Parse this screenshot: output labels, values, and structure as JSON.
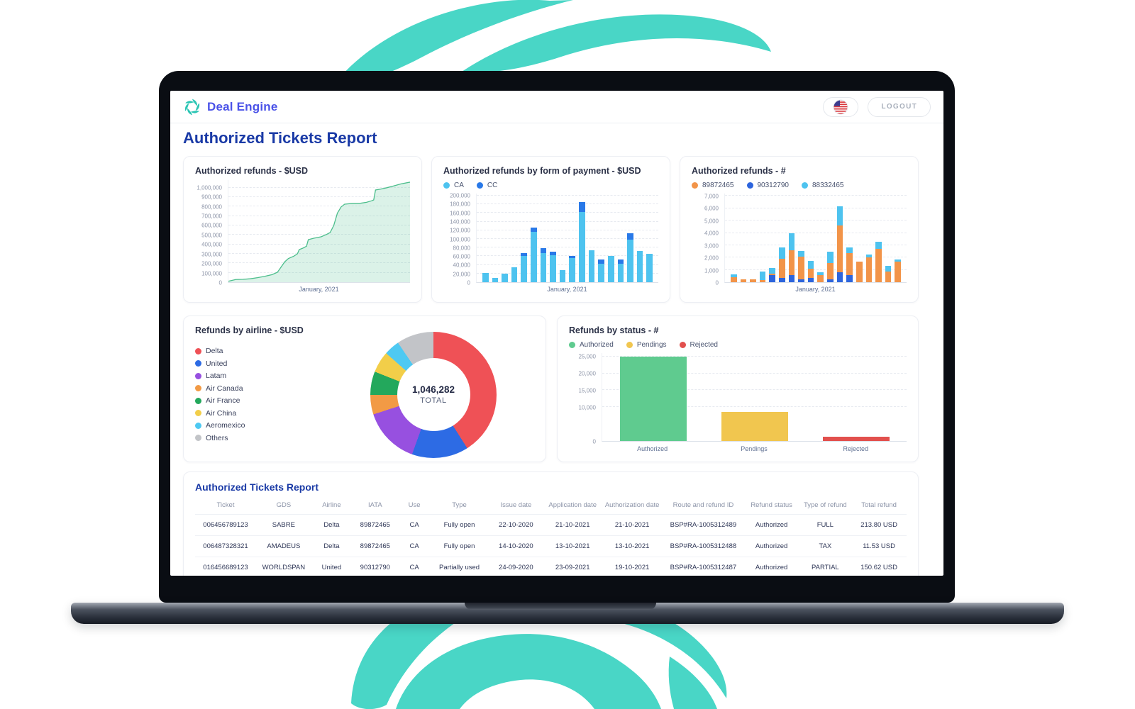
{
  "theme": {
    "swirl_color": "#49d6c6",
    "brand_color": "#4a52e8",
    "title_color": "#1a3aa6"
  },
  "header": {
    "brand": "Deal Engine",
    "logout_label": "LOGOUT",
    "language_icon": "us-flag"
  },
  "page_title": "Authorized Tickets Report",
  "chart_data": [
    {
      "id": "authorized-refunds-usd",
      "type": "area",
      "title": "Authorized refunds - $USD",
      "xlabel": "January, 2021",
      "ylim": [
        0,
        1080000
      ],
      "line_color": "#4cbe8c",
      "fill_color": "rgba(77,189,140,0.20)",
      "y_ticks": [
        {
          "label": "1,000,000",
          "value": 1000000
        },
        {
          "label": "900,000",
          "value": 900000
        },
        {
          "label": "800,000",
          "value": 800000
        },
        {
          "label": "700,000",
          "value": 700000
        },
        {
          "label": "600,000",
          "value": 600000
        },
        {
          "label": "500,000",
          "value": 500000
        },
        {
          "label": "400,000",
          "value": 400000
        },
        {
          "label": "300,000",
          "value": 300000
        },
        {
          "label": "200,000",
          "value": 200000
        },
        {
          "label": "100,000",
          "value": 100000
        },
        {
          "label": "0",
          "value": 0
        }
      ],
      "points": [
        [
          0,
          10000
        ],
        [
          4,
          28000
        ],
        [
          8,
          30000
        ],
        [
          12,
          36000
        ],
        [
          16,
          48000
        ],
        [
          20,
          62000
        ],
        [
          24,
          80000
        ],
        [
          27,
          105000
        ],
        [
          29,
          160000
        ],
        [
          31,
          215000
        ],
        [
          33,
          250000
        ],
        [
          36,
          275000
        ],
        [
          38,
          300000
        ],
        [
          39,
          345000
        ],
        [
          41,
          360000
        ],
        [
          43,
          380000
        ],
        [
          44,
          450000
        ],
        [
          47,
          465000
        ],
        [
          51,
          480000
        ],
        [
          54,
          505000
        ],
        [
          56,
          525000
        ],
        [
          58,
          600000
        ],
        [
          60,
          730000
        ],
        [
          62,
          795000
        ],
        [
          64,
          825000
        ],
        [
          68,
          833000
        ],
        [
          72,
          833000
        ],
        [
          76,
          845000
        ],
        [
          79,
          862000
        ],
        [
          80,
          870000
        ],
        [
          81,
          975000
        ],
        [
          84,
          985000
        ],
        [
          87,
          998000
        ],
        [
          91,
          1018000
        ],
        [
          95,
          1040000
        ],
        [
          100,
          1058000
        ]
      ]
    },
    {
      "id": "authorized-refunds-by-payment",
      "type": "stacked_bar",
      "title": "Authorized refunds by form of payment - $USD",
      "xlabel": "January, 2021",
      "ylim": [
        0,
        205000
      ],
      "y_ticks": [
        {
          "label": "200,000",
          "value": 200000
        },
        {
          "label": "180,000",
          "value": 180000
        },
        {
          "label": "160,000",
          "value": 160000
        },
        {
          "label": "140,000",
          "value": 140000
        },
        {
          "label": "120,000",
          "value": 120000
        },
        {
          "label": "100,000",
          "value": 100000
        },
        {
          "label": "80,000",
          "value": 80000
        },
        {
          "label": "60,000",
          "value": 60000
        },
        {
          "label": "40,000",
          "value": 40000
        },
        {
          "label": "20,000",
          "value": 20000
        },
        {
          "label": "0",
          "value": 0
        }
      ],
      "series": [
        {
          "name": "CA",
          "color": "#4ec3ef"
        },
        {
          "name": "CC",
          "color": "#2979e8"
        }
      ],
      "stack_order": [
        0,
        1
      ],
      "values": [
        [
          22000,
          0
        ],
        [
          10000,
          0
        ],
        [
          20000,
          0
        ],
        [
          35000,
          0
        ],
        [
          60000,
          7000
        ],
        [
          117000,
          10000
        ],
        [
          68000,
          10000
        ],
        [
          63000,
          8000
        ],
        [
          28000,
          0
        ],
        [
          56000,
          4000
        ],
        [
          163000,
          23000
        ],
        [
          74000,
          0
        ],
        [
          42000,
          10000
        ],
        [
          60000,
          0
        ],
        [
          43000,
          9000
        ],
        [
          99000,
          14000
        ],
        [
          72000,
          0
        ],
        [
          65000,
          0
        ]
      ]
    },
    {
      "id": "authorized-refunds-count",
      "type": "stacked_bar",
      "title": "Authorized refunds - #",
      "xlabel": "January, 2021",
      "ylim": [
        0,
        7200
      ],
      "y_ticks": [
        {
          "label": "7,000",
          "value": 7000
        },
        {
          "label": "6,000",
          "value": 6000
        },
        {
          "label": "5,000",
          "value": 5000
        },
        {
          "label": "4,000",
          "value": 4000
        },
        {
          "label": "3,000",
          "value": 3000
        },
        {
          "label": "2,000",
          "value": 2000
        },
        {
          "label": "1,000",
          "value": 1000
        },
        {
          "label": "0",
          "value": 0
        }
      ],
      "series": [
        {
          "name": "89872465",
          "color": "#f29449"
        },
        {
          "name": "90312790",
          "color": "#2d65dd"
        },
        {
          "name": "88332465",
          "color": "#4ec3ef"
        }
      ],
      "stack_order": [
        1,
        0,
        2
      ],
      "values": [
        [
          400,
          0,
          250
        ],
        [
          250,
          0,
          0
        ],
        [
          250,
          0,
          0
        ],
        [
          150,
          0,
          700
        ],
        [
          100,
          600,
          450
        ],
        [
          1550,
          350,
          900
        ],
        [
          2050,
          550,
          1350
        ],
        [
          1800,
          250,
          500
        ],
        [
          750,
          350,
          650
        ],
        [
          550,
          0,
          250
        ],
        [
          1300,
          250,
          950
        ],
        [
          3800,
          800,
          1550
        ],
        [
          1800,
          550,
          500
        ],
        [
          1700,
          0,
          0
        ],
        [
          2000,
          0,
          250
        ],
        [
          2700,
          0,
          600
        ],
        [
          850,
          0,
          450
        ],
        [
          1700,
          0,
          150
        ]
      ]
    },
    {
      "id": "refunds-by-airline",
      "type": "donut",
      "title": "Refunds by airline - $USD",
      "center_value": "1,046,282",
      "center_label": "TOTAL",
      "segments": [
        {
          "label": "Delta",
          "color": "#ef5156",
          "pct": 41
        },
        {
          "label": "United",
          "color": "#2d6be4",
          "pct": 14.5
        },
        {
          "label": "Latam",
          "color": "#9750e0",
          "pct": 14.5
        },
        {
          "label": "Air Canada",
          "color": "#f29a45",
          "pct": 5
        },
        {
          "label": "Air France",
          "color": "#23a85c",
          "pct": 6
        },
        {
          "label": "Air China",
          "color": "#f2ce49",
          "pct": 5.5
        },
        {
          "label": "Aeromexico",
          "color": "#4ec9f2",
          "pct": 4
        },
        {
          "label": "Others",
          "color": "#c2c4c8",
          "pct": 9.5
        }
      ]
    },
    {
      "id": "refunds-by-status",
      "type": "bar",
      "title": "Refunds by status - #",
      "ylim": [
        0,
        26000
      ],
      "y_ticks": [
        {
          "label": "25,000",
          "value": 25000
        },
        {
          "label": "20,000",
          "value": 20000
        },
        {
          "label": "15,000",
          "value": 15000
        },
        {
          "label": "10,000",
          "value": 10000
        },
        {
          "label": "0",
          "value": 0
        }
      ],
      "categories": [
        "Authorized",
        "Pendings",
        "Rejected"
      ],
      "values": [
        25000,
        8500,
        1300
      ],
      "colors": [
        "#5fcb8f",
        "#f1c64f",
        "#e2504d"
      ],
      "legend": [
        {
          "label": "Authorized",
          "color": "#5fcb8f"
        },
        {
          "label": "Pendings",
          "color": "#f1c64f"
        },
        {
          "label": "Rejected",
          "color": "#e2504d"
        }
      ]
    }
  ],
  "table": {
    "title": "Authorized Tickets Report",
    "columns": [
      "Ticket",
      "GDS",
      "Airline",
      "IATA",
      "Use",
      "Type",
      "Issue date",
      "Application date",
      "Authorization date",
      "Route and refund ID",
      "Refund status",
      "Type of refund",
      "Total refund"
    ],
    "rows": [
      [
        "006456789123",
        "SABRE",
        "Delta",
        "89872465",
        "CA",
        "Fully open",
        "22-10-2020",
        "21-10-2021",
        "21-10-2021",
        "BSP#RA-1005312489",
        "Authorized",
        "FULL",
        "213.80 USD"
      ],
      [
        "006487328321",
        "AMADEUS",
        "Delta",
        "89872465",
        "CA",
        "Fully open",
        "14-10-2020",
        "13-10-2021",
        "13-10-2021",
        "BSP#RA-1005312488",
        "Authorized",
        "TAX",
        "11.53 USD"
      ],
      [
        "016456689123",
        "WORLDSPAN",
        "United",
        "90312790",
        "CA",
        "Partially used",
        "24-09-2020",
        "23-09-2021",
        "19-10-2021",
        "BSP#RA-1005312487",
        "Authorized",
        "PARTIAL",
        "150.62 USD"
      ]
    ]
  }
}
